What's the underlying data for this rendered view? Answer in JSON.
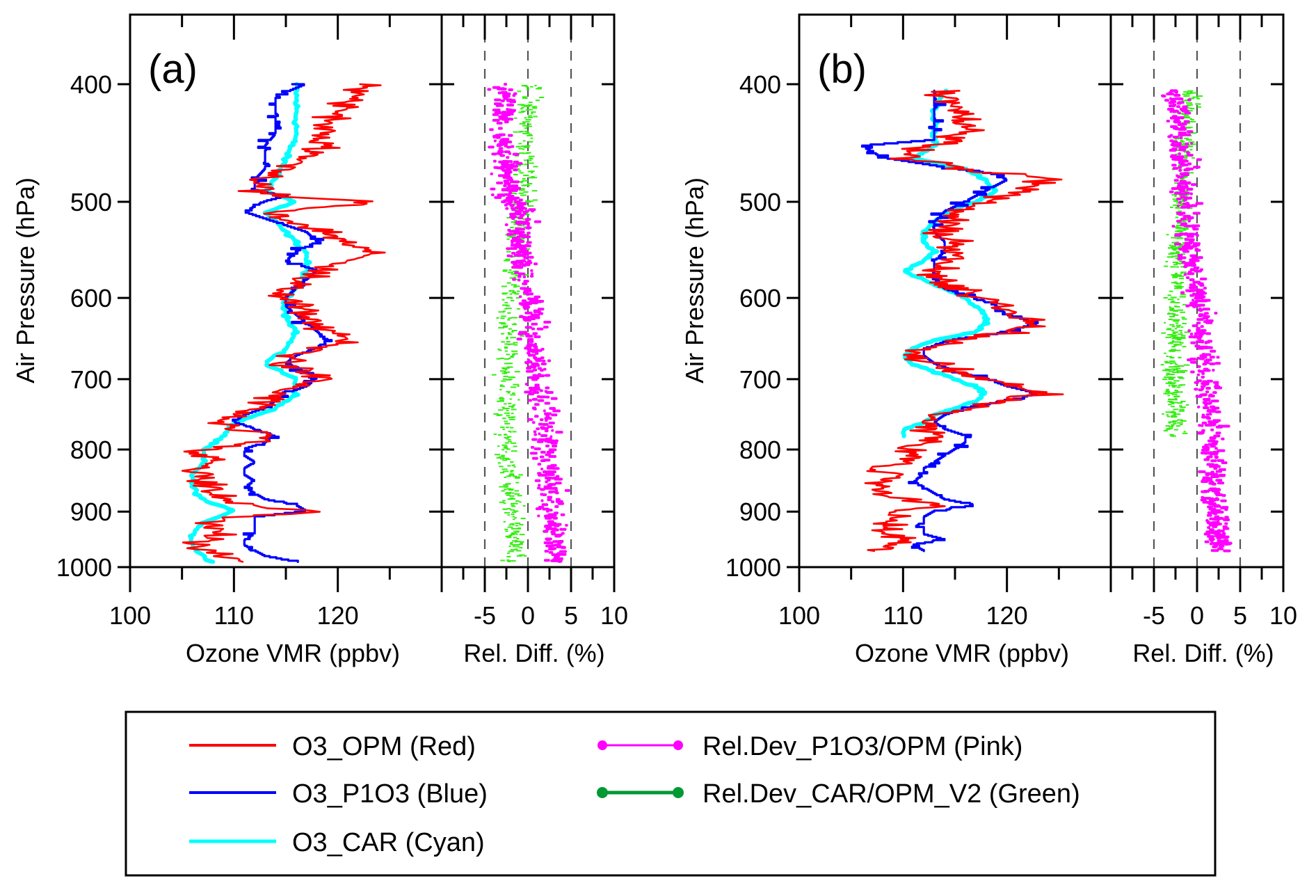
{
  "chart_data": {
    "type": "line",
    "legend": {
      "placement": "bottom",
      "entries": [
        {
          "key": "opm",
          "label": "O3_OPM (Red)",
          "color": "#ff0000",
          "style": "line"
        },
        {
          "key": "p1o3",
          "label": "O3_P1O3 (Blue)",
          "color": "#0000ff",
          "style": "line"
        },
        {
          "key": "car",
          "label": "O3_CAR (Cyan)",
          "color": "#00ffff",
          "style": "line"
        },
        {
          "key": "dev_p1o3",
          "label": "Rel.Dev_P1O3/OPM (Pink)",
          "color": "#ff00ff",
          "style": "line-markers"
        },
        {
          "key": "dev_car",
          "label": "Rel.Dev_CAR/OPM_V2 (Green)",
          "color": "#009933",
          "style": "line-markers"
        }
      ]
    },
    "panels": [
      {
        "id": "a",
        "label": "(a)",
        "ylabel": "Air Pressure (hPa)",
        "yscale": "log",
        "ylim": [
          1000,
          350
        ],
        "yticks": [
          400,
          500,
          600,
          700,
          800,
          900,
          1000
        ],
        "profile": {
          "xlabel": "Ozone VMR (ppbv)",
          "xlim": [
            100,
            130
          ],
          "xticks": [
            100,
            110,
            120
          ],
          "xminor": [
            105,
            115,
            125
          ],
          "series": {
            "opm": {
              "p": [
                400,
                410,
                420,
                430,
                440,
                450,
                460,
                470,
                480,
                490,
                495,
                500,
                510,
                520,
                530,
                540,
                550,
                560,
                570,
                580,
                590,
                600,
                610,
                620,
                630,
                640,
                650,
                660,
                670,
                680,
                690,
                700,
                710,
                720,
                730,
                740,
                750,
                760,
                770,
                780,
                790,
                800,
                810,
                820,
                830,
                840,
                850,
                860,
                870,
                880,
                890,
                900,
                910,
                920,
                930,
                940,
                950,
                960,
                970,
                980,
                990
              ],
              "v": [
                123,
                122,
                120,
                119,
                119,
                118,
                117,
                115,
                113,
                112,
                114,
                124,
                113,
                116,
                119,
                121,
                123,
                121,
                119,
                116,
                115,
                115,
                116,
                117,
                118,
                119,
                121,
                118,
                116,
                115,
                117,
                118,
                116,
                114,
                113,
                112,
                110,
                108,
                110,
                113,
                112,
                107,
                107,
                108,
                106,
                107,
                106,
                108,
                108,
                109,
                111,
                118,
                110,
                108,
                108,
                108,
                107,
                106,
                107,
                109,
                110
              ]
            },
            "p1o3": {
              "p": [
                400,
                410,
                420,
                430,
                440,
                450,
                460,
                470,
                480,
                490,
                495,
                500,
                510,
                520,
                530,
                540,
                550,
                560,
                570,
                580,
                590,
                600,
                610,
                620,
                630,
                640,
                650,
                660,
                670,
                680,
                690,
                700,
                710,
                720,
                730,
                740,
                750,
                760,
                770,
                780,
                790,
                800,
                810,
                820,
                830,
                840,
                850,
                860,
                870,
                880,
                890,
                900,
                910,
                920,
                930,
                940,
                950,
                960,
                970,
                980,
                990
              ],
              "v": [
                117,
                114,
                114,
                114,
                114,
                113,
                113,
                113,
                112,
                112,
                115,
                113,
                111,
                114,
                117,
                118,
                116,
                115,
                118,
                117,
                116,
                115,
                115,
                116,
                117,
                118,
                119,
                118,
                116,
                115,
                117,
                118,
                117,
                115,
                114,
                113,
                111,
                110,
                112,
                114,
                113,
                111,
                111,
                112,
                111,
                111,
                112,
                111,
                112,
                113,
                116,
                117,
                112,
                112,
                112,
                112,
                111,
                111,
                112,
                113,
                116
              ]
            },
            "car": {
              "p": [
                400,
                420,
                440,
                460,
                480,
                490,
                500,
                510,
                530,
                550,
                570,
                590,
                600,
                620,
                640,
                660,
                680,
                700,
                720,
                740,
                760,
                780,
                800,
                820,
                840,
                860,
                880,
                900,
                920,
                940,
                960,
                980,
                990
              ],
              "v": [
                116,
                116,
                116,
                115,
                114,
                113,
                116,
                113,
                115,
                117,
                117,
                116,
                115,
                115,
                116,
                115,
                113,
                116,
                116,
                114,
                110,
                109,
                107,
                107,
                106,
                106,
                107,
                110,
                107,
                106,
                106,
                107,
                108
              ]
            }
          }
        },
        "reldiff": {
          "xlabel": "Rel. Diff. (%)",
          "xlim": [
            -10,
            10
          ],
          "xticks": [
            -5,
            0,
            5,
            10
          ],
          "xminor": [
            -7.5,
            -2.5,
            2.5,
            7.5
          ],
          "reference_lines": [
            -5,
            0,
            5
          ],
          "series": {
            "dev_p1o3": {
              "p": [
                400,
                450,
                495,
                505,
                550,
                600,
                650,
                700,
                750,
                800,
                850,
                900,
                950,
                990
              ],
              "mean": [
                -3.0,
                -3.0,
                -2.5,
                -1.0,
                -1.0,
                0.0,
                0.5,
                1.0,
                1.5,
                2.0,
                2.5,
                2.5,
                3.0,
                3.0
              ],
              "spread": 2.0
            },
            "dev_car": {
              "p": [
                400,
                450,
                495,
                505,
                550,
                600,
                650,
                700,
                750,
                800,
                850,
                900,
                950,
                990
              ],
              "mean": [
                0.0,
                -0.5,
                -0.5,
                -1.0,
                -1.5,
                -2.0,
                -2.5,
                -2.5,
                -2.5,
                -2.5,
                -2.0,
                -2.0,
                -1.5,
                -2.0
              ],
              "spread": 1.8
            }
          }
        }
      },
      {
        "id": "b",
        "label": "(b)",
        "ylabel": "Air Pressure (hPa)",
        "yscale": "log",
        "ylim": [
          1000,
          350
        ],
        "yticks": [
          400,
          500,
          600,
          700,
          800,
          900,
          1000
        ],
        "profile": {
          "xlabel": "Ozone VMR (ppbv)",
          "xlim": [
            100,
            130
          ],
          "xticks": [
            100,
            110,
            120
          ],
          "xminor": [
            105,
            115,
            125
          ],
          "series": {
            "opm": {
              "p": [
                405,
                415,
                425,
                435,
                445,
                450,
                460,
                470,
                475,
                480,
                490,
                500,
                510,
                520,
                530,
                540,
                550,
                560,
                570,
                580,
                590,
                600,
                610,
                620,
                630,
                640,
                650,
                660,
                670,
                680,
                690,
                700,
                710,
                720,
                730,
                740,
                750,
                760,
                770,
                780,
                790,
                800,
                810,
                820,
                830,
                840,
                850,
                860,
                870,
                880,
                890,
                900,
                910,
                920,
                930,
                940,
                950,
                960,
                970
              ],
              "v": [
                114,
                115,
                116,
                116,
                115,
                112,
                111,
                116,
                121,
                124,
                121,
                118,
                115,
                114,
                114,
                115,
                115,
                114,
                113,
                113,
                115,
                118,
                120,
                121,
                123,
                121,
                115,
                112,
                111,
                113,
                115,
                118,
                121,
                123,
                120,
                116,
                113,
                112,
                112,
                114,
                112,
                110,
                111,
                110,
                107,
                110,
                108,
                107,
                109,
                110,
                114,
                109,
                110,
                109,
                108,
                109,
                110,
                108,
                108
              ]
            },
            "p1o3": {
              "p": [
                405,
                415,
                425,
                435,
                445,
                450,
                460,
                470,
                475,
                480,
                490,
                500,
                510,
                520,
                530,
                540,
                550,
                560,
                570,
                580,
                590,
                600,
                610,
                620,
                630,
                640,
                650,
                660,
                670,
                680,
                690,
                700,
                710,
                720,
                730,
                740,
                750,
                760,
                770,
                780,
                790,
                800,
                810,
                820,
                830,
                840,
                850,
                860,
                870,
                880,
                890,
                900,
                910,
                920,
                930,
                940,
                950,
                960,
                970
              ],
              "v": [
                113,
                113,
                113,
                113,
                113,
                106,
                108,
                115,
                119,
                120,
                118,
                116,
                114,
                113,
                113,
                114,
                114,
                113,
                113,
                113,
                114,
                117,
                119,
                120,
                123,
                120,
                115,
                112,
                112,
                113,
                115,
                118,
                120,
                123,
                120,
                116,
                114,
                113,
                114,
                116,
                116,
                115,
                114,
                113,
                112,
                112,
                111,
                112,
                113,
                114,
                117,
                113,
                112,
                112,
                112,
                112,
                114,
                111,
                112
              ]
            },
            "car": {
              "p": [
                405,
                420,
                435,
                450,
                460,
                470,
                480,
                490,
                500,
                510,
                520,
                530,
                540,
                550,
                560,
                570,
                580,
                590,
                600,
                610,
                620,
                630,
                640,
                650,
                660,
                670,
                680,
                690,
                700,
                710,
                720,
                730,
                740,
                750,
                760,
                770,
                780
              ],
              "v": [
                114,
                113,
                113,
                113,
                111,
                116,
                118,
                119,
                117,
                114,
                113,
                112,
                112,
                113,
                112,
                110,
                112,
                114,
                116,
                117,
                118,
                118,
                117,
                113,
                111,
                110,
                111,
                113,
                115,
                117,
                118,
                117,
                115,
                113,
                112,
                110,
                110
              ]
            }
          }
        },
        "reldiff": {
          "xlabel": "Rel. Diff. (%)",
          "xlim": [
            -10,
            10
          ],
          "xticks": [
            -5,
            0,
            5,
            10
          ],
          "xminor": [
            -7.5,
            -2.5,
            2.5,
            7.5
          ],
          "reference_lines": [
            -5,
            0,
            5
          ],
          "series": {
            "dev_p1o3": {
              "p": [
                405,
                450,
                500,
                550,
                600,
                650,
                700,
                750,
                800,
                850,
                900,
                950,
                970
              ],
              "mean": [
                -2.5,
                -2.0,
                -1.5,
                -1.0,
                0.0,
                0.5,
                1.0,
                1.5,
                1.5,
                2.0,
                2.0,
                2.5,
                2.5
              ],
              "spread": 2.0
            },
            "dev_car": {
              "p": [
                405,
                450,
                500,
                550,
                600,
                650,
                700,
                750,
                780
              ],
              "mean": [
                -1.0,
                -1.5,
                -2.0,
                -2.5,
                -2.5,
                -2.5,
                -3.0,
                -2.5,
                -2.5
              ],
              "spread": 1.6
            }
          }
        }
      }
    ]
  },
  "legend_labels": {
    "opm": "O3_OPM (Red)",
    "p1o3": "O3_P1O3 (Blue)",
    "car": "O3_CAR (Cyan)",
    "dev_p1o3": "Rel.Dev_P1O3/OPM (Pink)",
    "dev_car": "Rel.Dev_CAR/OPM_V2 (Green)"
  },
  "panel_labels": {
    "a": "(a)",
    "b": "(b)"
  },
  "axis_titles": {
    "ylabel": "Air Pressure (hPa)",
    "profile_xlabel": "Ozone VMR (ppbv)",
    "reldiff_xlabel": "Rel. Diff. (%)"
  }
}
